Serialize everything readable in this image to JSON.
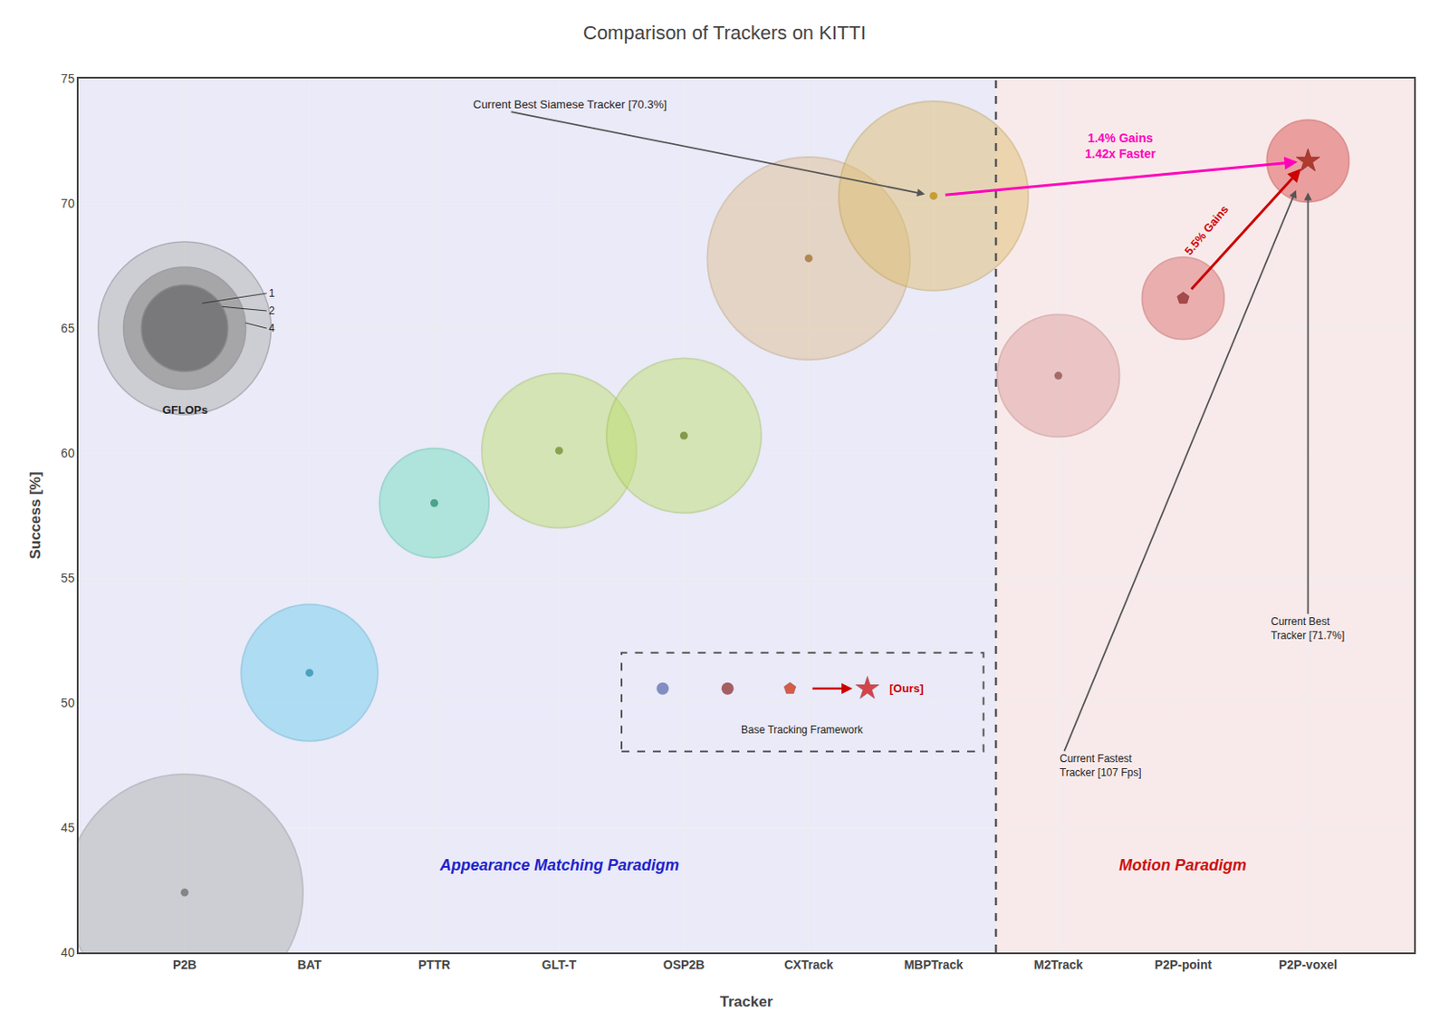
{
  "chart_data": {
    "type": "bubble",
    "title": "Comparison of Trackers on KITTI",
    "xlabel": "Tracker",
    "ylabel": "Success [%]",
    "categories": [
      "P2B",
      "BAT",
      "PTTR",
      "GLT-T",
      "OSP2B",
      "CXTrack",
      "MBPTrack",
      "M2Track",
      "P2P-point",
      "P2P-voxel"
    ],
    "values": [
      42.4,
      51.2,
      58.0,
      60.1,
      60.7,
      67.8,
      70.3,
      63.1,
      66.2,
      71.7
    ],
    "sizes": [
      7.5,
      2.5,
      1.6,
      3.2,
      3.2,
      5.5,
      4.8,
      2.0,
      0.9,
      0.9
    ],
    "colors": [
      "#aaaaaa",
      "#66ccee",
      "#66ddbb",
      "#bbdd66",
      "#bbdd66",
      "#ddbb88",
      "#ddbb66",
      "#dd9999",
      "#dd6666",
      "#dd4444"
    ],
    "edge_colors": [
      "#888888",
      "#44aacc",
      "#44bb99",
      "#99bb44",
      "#99bb44",
      "#bb9966",
      "#bb9944",
      "#bb7777",
      "#bb4444",
      "#bb2222"
    ],
    "center_colors": [
      "#666666",
      "#2288aa",
      "#228866",
      "#668822",
      "#667722",
      "#996622",
      "#bb8800",
      "#884444",
      "#882222",
      "#991100"
    ],
    "markers": [
      "circle",
      "circle",
      "circle",
      "circle",
      "circle",
      "circle",
      "circle",
      "circle",
      "pentagon",
      "star"
    ],
    "ylim": [
      40,
      75
    ],
    "yticks": [
      40,
      45,
      50,
      55,
      60,
      65,
      70,
      75
    ],
    "grid": true,
    "size_legend": {
      "title": "GFLOPs",
      "values": [
        1,
        2,
        4
      ]
    },
    "groups": [
      {
        "text": "Appearance Matching Paradigm",
        "color": "#2222cc",
        "background": "#eaeaf8",
        "categories": [
          "P2B",
          "BAT",
          "PTTR",
          "GLT-T",
          "OSP2B",
          "CXTrack",
          "MBPTrack"
        ]
      },
      {
        "text": "Motion Paradigm",
        "color": "#cc1111",
        "background": "#f8eaea",
        "categories": [
          "M2Track",
          "P2P-point",
          "P2P-voxel"
        ]
      }
    ],
    "annotations": [
      {
        "text": "Current Best Siamese Tracker [70.3%]",
        "target": "MBPTrack"
      },
      {
        "text": "Current Best\nTracker [71.7%]",
        "target": "P2P-voxel"
      },
      {
        "text": "Current Fastest\nTracker [107 Fps]",
        "target": "P2P-voxel"
      }
    ],
    "comparisons": [
      {
        "from": "MBPTrack",
        "to": "P2P-voxel",
        "color": "#ff00bb",
        "texts": [
          "1.4% Gains",
          "1.42x Faster"
        ]
      },
      {
        "from": "P2P-point",
        "to": "P2P-voxel",
        "color": "#cc0000",
        "texts": [
          "5.5% Gains"
        ]
      }
    ],
    "framework_legend": {
      "markers": [
        {
          "marker": "circle",
          "color": "#5566aa"
        },
        {
          "marker": "circle",
          "color": "#882222"
        },
        {
          "marker": "pentagon",
          "color": "#cc2200"
        },
        {
          "marker": "star",
          "color": "#cc0000"
        }
      ],
      "ours": "[Ours]",
      "ours_color": "#cc0000",
      "base": "Base Tracking Framework"
    }
  }
}
